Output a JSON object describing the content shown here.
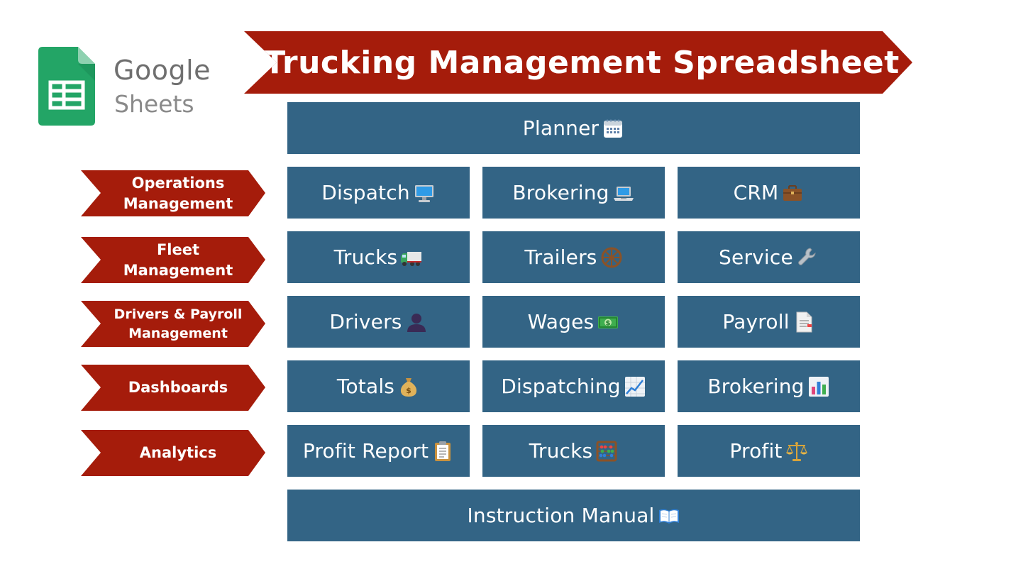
{
  "logo": {
    "word_google": "Google",
    "word_sheets": "Sheets",
    "icon": "google-sheets-icon",
    "color": "#23a566"
  },
  "title": "Trucking Management Spreadsheet",
  "colors": {
    "banner_red": "#a51c0b",
    "tile_blue": "#336485",
    "text_white": "#ffffff"
  },
  "categories": [
    {
      "label": "Operations Management"
    },
    {
      "label": "Fleet Management"
    },
    {
      "label": "Drivers & Payroll Management"
    },
    {
      "label": "Dashboards"
    },
    {
      "label": "Analytics"
    }
  ],
  "tiles": {
    "planner": {
      "label": "Planner",
      "icon": "calendar-icon"
    },
    "operations": [
      {
        "label": "Dispatch",
        "icon": "desktop-computer-icon"
      },
      {
        "label": "Brokering",
        "icon": "laptop-icon"
      },
      {
        "label": "CRM",
        "icon": "briefcase-icon"
      }
    ],
    "fleet": [
      {
        "label": "Trucks",
        "icon": "delivery-truck-icon"
      },
      {
        "label": "Trailers",
        "icon": "wheel-icon"
      },
      {
        "label": "Service",
        "icon": "wrench-icon"
      }
    ],
    "drivers": [
      {
        "label": "Drivers",
        "icon": "person-silhouette-icon"
      },
      {
        "label": "Wages",
        "icon": "dollar-banknote-icon"
      },
      {
        "label": "Payroll",
        "icon": "document-icon"
      }
    ],
    "dashboards": [
      {
        "label": "Totals",
        "icon": "money-bag-icon"
      },
      {
        "label": "Dispatching",
        "icon": "line-chart-icon"
      },
      {
        "label": "Brokering",
        "icon": "bar-chart-icon"
      }
    ],
    "analytics": [
      {
        "label": "Profit Report",
        "icon": "clipboard-icon"
      },
      {
        "label": "Trucks",
        "icon": "abacus-icon"
      },
      {
        "label": "Profit",
        "icon": "balance-scale-icon"
      }
    ],
    "manual": {
      "label": "Instruction Manual",
      "icon": "open-book-icon"
    }
  }
}
